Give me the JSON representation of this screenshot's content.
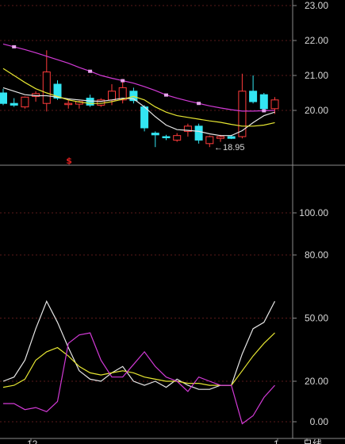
{
  "colors": {
    "background": "#000000",
    "grid": "#5a1a1a",
    "axis": "#8a8a8a",
    "up": "#ff3b3b",
    "down": "#33e5f2",
    "ma_long": "#d23ad6",
    "ma_mid": "#e6e6e6",
    "ma_short": "#e6e632",
    "text": "#d8d8d8",
    "marker": "#e02020"
  },
  "chart_data": [
    {
      "type": "candlestick",
      "ylim": [
        18.0,
        23.15
      ],
      "y_ticks": [
        "23.00",
        "22.00",
        "21.00",
        "20.00"
      ],
      "y_tick_values": [
        23,
        22,
        21,
        20
      ],
      "candles": [
        {
          "o": 20.5,
          "h": 20.62,
          "l": 20.15,
          "c": 20.2
        },
        {
          "o": 20.2,
          "h": 20.35,
          "l": 20.1,
          "c": 20.15
        },
        {
          "o": 20.1,
          "h": 20.4,
          "l": 20.05,
          "c": 20.38
        },
        {
          "o": 20.4,
          "h": 20.55,
          "l": 20.25,
          "c": 20.48
        },
        {
          "o": 20.2,
          "h": 21.72,
          "l": 19.97,
          "c": 21.1
        },
        {
          "o": 20.75,
          "h": 20.86,
          "l": 20.3,
          "c": 20.35
        },
        {
          "o": 20.2,
          "h": 20.3,
          "l": 20.05,
          "c": 20.2
        },
        {
          "o": 20.18,
          "h": 20.28,
          "l": 20.05,
          "c": 20.25
        },
        {
          "o": 20.35,
          "h": 20.45,
          "l": 20.1,
          "c": 20.15
        },
        {
          "o": 20.15,
          "h": 20.35,
          "l": 20.1,
          "c": 20.3
        },
        {
          "o": 20.3,
          "h": 20.75,
          "l": 20.15,
          "c": 20.55
        },
        {
          "o": 20.3,
          "h": 20.9,
          "l": 20.2,
          "c": 20.65
        },
        {
          "o": 20.55,
          "h": 20.65,
          "l": 20.2,
          "c": 20.28
        },
        {
          "o": 20.1,
          "h": 20.15,
          "l": 19.4,
          "c": 19.5
        },
        {
          "o": 19.35,
          "h": 19.4,
          "l": 18.95,
          "c": 19.3
        },
        {
          "o": 19.25,
          "h": 19.3,
          "l": 19.15,
          "c": 19.22
        },
        {
          "o": 19.15,
          "h": 19.35,
          "l": 19.1,
          "c": 19.28
        },
        {
          "o": 19.4,
          "h": 19.62,
          "l": 19.25,
          "c": 19.55
        },
        {
          "o": 19.55,
          "h": 19.62,
          "l": 19.05,
          "c": 19.15
        },
        {
          "o": 19.05,
          "h": 19.28,
          "l": 18.95,
          "c": 19.25
        },
        {
          "o": 19.2,
          "h": 19.3,
          "l": 19.1,
          "c": 19.25
        },
        {
          "o": 19.25,
          "h": 19.3,
          "l": 19.18,
          "c": 19.2
        },
        {
          "o": 19.25,
          "h": 21.05,
          "l": 19.2,
          "c": 20.55
        },
        {
          "o": 20.55,
          "h": 21.0,
          "l": 20.2,
          "c": 20.25
        },
        {
          "o": 20.45,
          "h": 20.5,
          "l": 19.95,
          "c": 20.05
        },
        {
          "o": 20.05,
          "h": 20.38,
          "l": 19.9,
          "c": 20.3
        }
      ],
      "ma_long": [
        21.9,
        21.82,
        21.74,
        21.65,
        21.55,
        21.45,
        21.35,
        21.23,
        21.12,
        21.0,
        20.92,
        20.85,
        20.78,
        20.68,
        20.57,
        20.44,
        20.35,
        20.27,
        20.2,
        20.13,
        20.07,
        20.02,
        19.98,
        19.98,
        19.99,
        20.0
      ],
      "ma_mid": [
        20.65,
        20.55,
        20.45,
        20.42,
        20.42,
        20.38,
        20.33,
        20.3,
        20.27,
        20.26,
        20.3,
        20.35,
        20.33,
        20.1,
        19.82,
        19.58,
        19.45,
        19.43,
        19.4,
        19.33,
        19.28,
        19.28,
        19.42,
        19.65,
        19.85,
        19.95
      ],
      "ma_short": [
        21.2,
        21.0,
        20.8,
        20.62,
        20.5,
        20.4,
        20.3,
        20.24,
        20.2,
        20.2,
        20.25,
        20.32,
        20.4,
        20.3,
        20.1,
        19.95,
        19.85,
        19.8,
        19.75,
        19.7,
        19.66,
        19.6,
        19.55,
        19.55,
        19.58,
        19.65
      ],
      "annotation": {
        "text": "←18.95",
        "index": 20
      },
      "marker": {
        "text": "$",
        "index": 6
      }
    },
    {
      "type": "line",
      "ylim": [
        -4,
        125
      ],
      "y_ticks": [
        "100.00",
        "80.00",
        "50.00",
        "20.00",
        "0.00"
      ],
      "y_tick_values": [
        100,
        80,
        50,
        20,
        0
      ],
      "series": [
        {
          "color_key": "ma_mid",
          "values": [
            20,
            22,
            30,
            45,
            58,
            48,
            36,
            25,
            21,
            20,
            24,
            27,
            20,
            18,
            20,
            17,
            21,
            18,
            16,
            16,
            18,
            18,
            33,
            45,
            48,
            58
          ]
        },
        {
          "color_key": "ma_short",
          "values": [
            17,
            18,
            21,
            30,
            34,
            36,
            32,
            27,
            24,
            23,
            24,
            25,
            24,
            22,
            21,
            20,
            20,
            19,
            19,
            18,
            18,
            18,
            25,
            32,
            38,
            43
          ]
        },
        {
          "color_key": "ma_long",
          "values": [
            9,
            9,
            6,
            7,
            5,
            10,
            38,
            42,
            43,
            30,
            22,
            22,
            28,
            34,
            27,
            22,
            20,
            15,
            22,
            20,
            18,
            18,
            -1,
            3,
            12,
            18
          ]
        }
      ]
    }
  ],
  "x_labels": [
    "12",
    "1",
    "日线"
  ]
}
